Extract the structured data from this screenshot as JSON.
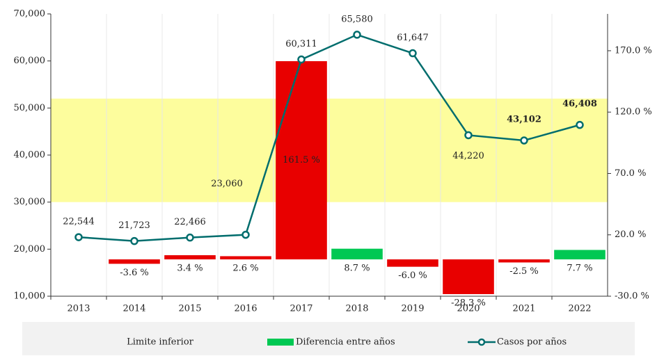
{
  "chart_data": {
    "type": "combo",
    "categories": [
      "2013",
      "2014",
      "2015",
      "2016",
      "2017",
      "2018",
      "2019",
      "2020",
      "2021",
      "2022"
    ],
    "band": {
      "name": "Limite inferior",
      "lower": 30000,
      "upper": 52000,
      "color": "#fdfd9d"
    },
    "series": [
      {
        "name": "Diferencia entre años",
        "type": "bar",
        "axis": "y2",
        "color": "#00c853",
        "colors": [
          null,
          "#e80000",
          "#e80000",
          "#e80000",
          "#e80000",
          "#00c853",
          "#e80000",
          "#e80000",
          "#e80000",
          "#00c853"
        ],
        "values": [
          null,
          -3.6,
          3.4,
          2.6,
          161.5,
          8.7,
          -6.0,
          -28.3,
          -2.5,
          7.7
        ],
        "value_labels": [
          null,
          "-3.6 %",
          "3.4 %",
          "2.6 %",
          "161.5 %",
          "8.7 %",
          "-6.0 %",
          "-28.3 %",
          "-2.5 %",
          "7.7 %"
        ]
      },
      {
        "name": "Casos por años",
        "type": "line",
        "color": "#006d6d",
        "values": [
          22544,
          21723,
          22466,
          23060,
          60311,
          65580,
          61647,
          44220,
          43102,
          46408
        ],
        "value_labels": [
          "22,544",
          "21,723",
          "22,466",
          "23,060",
          "60,311",
          "65,580",
          "61,647",
          "44,220",
          "43,102",
          "46,408"
        ]
      }
    ],
    "ylim": [
      10000,
      70000
    ],
    "yticks": [
      {
        "value": 10000,
        "label": "10,000"
      },
      {
        "value": 20000,
        "label": "20,000"
      },
      {
        "value": 30000,
        "label": "30,000"
      },
      {
        "value": 40000,
        "label": "40,000"
      },
      {
        "value": 50000,
        "label": "50,000"
      },
      {
        "value": 60000,
        "label": "60,000"
      },
      {
        "value": 70000,
        "label": "70,000"
      }
    ],
    "y2lim": [
      -30,
      200
    ],
    "y2ticks": [
      {
        "value": -30,
        "label": "-30.0 %"
      },
      {
        "value": 20,
        "label": "20.0 %"
      },
      {
        "value": 70,
        "label": "70.0 %"
      },
      {
        "value": 120,
        "label": "120.0 %"
      },
      {
        "value": 170,
        "label": "170.0 %"
      }
    ],
    "legend": "bottom"
  }
}
